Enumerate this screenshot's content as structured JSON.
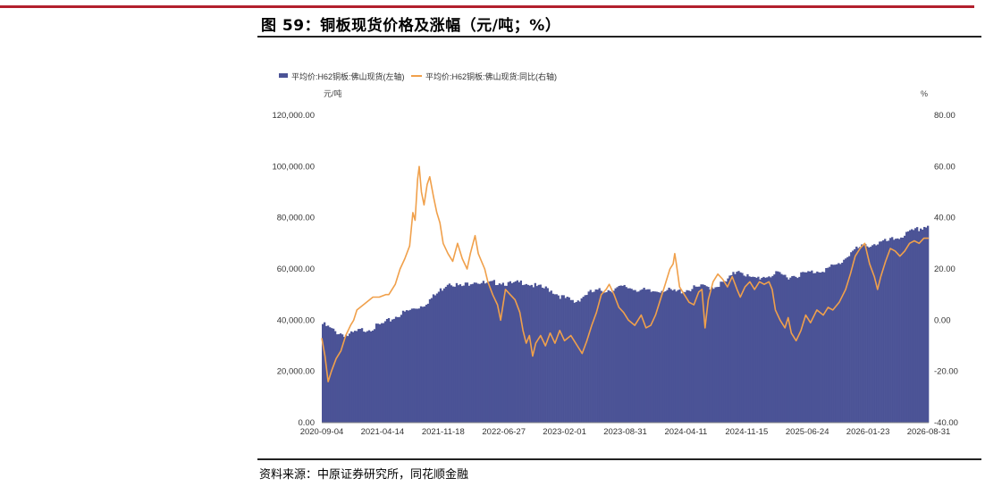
{
  "figure": {
    "title": "图 59：铜板现货价格及涨幅（元/吨；%）",
    "source": "资料来源：中原证券研究所，同花顺金融"
  },
  "colors": {
    "bar": "#4b5396",
    "line": "#f0a04b",
    "accent_rule": "#b21f2d"
  },
  "chart_data": {
    "type": "bar",
    "legend": [
      "平均价:H62铜板:佛山现货(左轴)",
      "平均价:H62铜板:佛山现货:同比(右轴)"
    ],
    "legend_position": "top-left",
    "left_unit": "元/吨",
    "right_unit": "%",
    "left_ticks": [
      "0.00",
      "20,000.00",
      "40,000.00",
      "60,000.00",
      "80,000.00",
      "100,000.00",
      "120,000.00"
    ],
    "right_ticks": [
      "-40.00",
      "-20.00",
      "0.00",
      "20.00",
      "40.00",
      "60.00",
      "80.00"
    ],
    "ylim_left": [
      0,
      120000
    ],
    "ylim_right": [
      -40,
      80
    ],
    "x_tick_labels": [
      "2020-09-04",
      "2021-04-14",
      "2021-11-18",
      "2022-06-27",
      "2023-02-01",
      "2023-08-31",
      "2024-04-11",
      "2024-11-15",
      "2025-06-24",
      "2026-01-23",
      "2026-08-31"
    ],
    "grid": false,
    "series": [
      {
        "name": "平均价:H62铜板:佛山现货(左轴)",
        "type": "bar",
        "axis": "left",
        "points": [
          [
            0,
            38500
          ],
          [
            0.25,
            35500
          ],
          [
            0.5,
            34000
          ],
          [
            0.75,
            36000
          ],
          [
            1,
            37000
          ],
          [
            1.25,
            39000
          ],
          [
            1.5,
            42000
          ],
          [
            1.75,
            44000
          ],
          [
            2,
            46000
          ],
          [
            2.25,
            50000
          ],
          [
            2.5,
            55000
          ],
          [
            2.75,
            53000
          ],
          [
            3,
            55500
          ],
          [
            3.25,
            54000
          ],
          [
            3.5,
            55000
          ],
          [
            3.75,
            54000
          ],
          [
            4,
            55000
          ],
          [
            4.25,
            53000
          ],
          [
            4.5,
            52000
          ],
          [
            4.75,
            49000
          ],
          [
            5,
            47000
          ],
          [
            5.25,
            50500
          ],
          [
            5.5,
            51500
          ],
          [
            5.75,
            52000
          ],
          [
            6,
            53000
          ],
          [
            6.25,
            52000
          ],
          [
            6.5,
            51000
          ],
          [
            6.75,
            52000
          ],
          [
            7,
            51000
          ],
          [
            7.25,
            52000
          ],
          [
            7.5,
            53000
          ],
          [
            7.75,
            53000
          ],
          [
            8,
            55000
          ],
          [
            8.25,
            60000
          ],
          [
            8.5,
            56000
          ],
          [
            8.75,
            57000
          ],
          [
            9,
            58000
          ],
          [
            9.25,
            57000
          ],
          [
            9.5,
            58000
          ],
          [
            9.75,
            59000
          ],
          [
            10,
            60000
          ],
          [
            10.25,
            62000
          ],
          [
            10.5,
            67000
          ],
          [
            10.75,
            69000
          ],
          [
            11,
            70000
          ],
          [
            11.25,
            71000
          ],
          [
            11.5,
            73000
          ],
          [
            11.75,
            75000
          ],
          [
            12,
            77000
          ]
        ]
      },
      {
        "name": "平均价:H62铜板:佛山现货:同比(右轴)",
        "type": "line",
        "axis": "right",
        "points": [
          [
            0,
            -7
          ],
          [
            0.1,
            -14
          ],
          [
            0.2,
            -24
          ],
          [
            0.3,
            -20
          ],
          [
            0.45,
            -15
          ],
          [
            0.6,
            -12
          ],
          [
            0.75,
            -6
          ],
          [
            0.9,
            -2
          ],
          [
            1,
            0
          ],
          [
            1.1,
            4
          ],
          [
            1.3,
            6
          ],
          [
            1.6,
            9
          ],
          [
            1.8,
            9
          ],
          [
            2,
            10
          ],
          [
            2.1,
            10
          ],
          [
            2.3,
            14
          ],
          [
            2.45,
            20
          ],
          [
            2.6,
            24
          ],
          [
            2.75,
            29
          ],
          [
            2.85,
            42
          ],
          [
            2.92,
            39
          ],
          [
            3,
            55
          ],
          [
            3.05,
            60
          ],
          [
            3.12,
            50
          ],
          [
            3.2,
            45
          ],
          [
            3.3,
            53
          ],
          [
            3.38,
            56
          ],
          [
            3.5,
            48
          ],
          [
            3.6,
            42
          ],
          [
            3.7,
            38
          ],
          [
            3.8,
            30
          ],
          [
            3.95,
            26
          ],
          [
            4.1,
            23
          ],
          [
            4.25,
            30
          ],
          [
            4.4,
            24
          ],
          [
            4.55,
            20
          ],
          [
            4.65,
            26
          ],
          [
            4.8,
            33
          ],
          [
            4.9,
            26
          ],
          [
            5,
            23
          ],
          [
            5.1,
            20
          ],
          [
            5.2,
            15
          ],
          [
            5.35,
            10
          ],
          [
            5.5,
            6
          ],
          [
            5.6,
            0
          ],
          [
            5.75,
            12
          ],
          [
            5.9,
            10
          ],
          [
            6.05,
            8
          ],
          [
            6.2,
            3
          ],
          [
            6.3,
            -4
          ],
          [
            6.4,
            -9
          ],
          [
            6.5,
            -6
          ],
          [
            6.6,
            -14
          ],
          [
            6.7,
            -9
          ],
          [
            6.85,
            -6
          ],
          [
            7,
            -10
          ],
          [
            7.15,
            -5
          ],
          [
            7.3,
            -9
          ],
          [
            7.45,
            -4
          ],
          [
            7.6,
            -8
          ],
          [
            7.8,
            -6
          ],
          [
            8,
            -10
          ],
          [
            8.15,
            -13
          ],
          [
            8.3,
            -8
          ],
          [
            8.45,
            -2
          ],
          [
            8.6,
            3
          ],
          [
            8.75,
            10
          ],
          [
            8.9,
            12
          ],
          [
            9,
            14
          ],
          [
            9.15,
            10
          ],
          [
            9.3,
            5
          ],
          [
            9.45,
            3
          ],
          [
            9.6,
            0
          ],
          [
            9.8,
            -2
          ],
          [
            10,
            2
          ],
          [
            10.15,
            -3
          ],
          [
            10.3,
            -2
          ],
          [
            10.45,
            2
          ],
          [
            10.6,
            8
          ],
          [
            10.75,
            14
          ],
          [
            10.9,
            20
          ],
          [
            11,
            22
          ],
          [
            11.05,
            26
          ],
          [
            11.1,
            22
          ],
          [
            11.2,
            13
          ],
          [
            11.35,
            10
          ],
          [
            11.5,
            7
          ],
          [
            11.65,
            6
          ],
          [
            11.8,
            11
          ],
          [
            11.9,
            12
          ],
          [
            12,
            -3
          ],
          [
            12.1,
            8
          ],
          [
            12.25,
            15
          ],
          [
            12.4,
            18
          ],
          [
            12.55,
            16
          ],
          [
            12.7,
            13
          ],
          [
            12.85,
            17
          ],
          [
            13,
            12
          ],
          [
            13.1,
            9
          ],
          [
            13.25,
            13
          ],
          [
            13.4,
            15
          ],
          [
            13.55,
            12
          ],
          [
            13.7,
            15
          ],
          [
            13.85,
            14
          ],
          [
            14,
            15
          ],
          [
            14.1,
            12
          ],
          [
            14.2,
            4
          ],
          [
            14.35,
            0
          ],
          [
            14.5,
            -3
          ],
          [
            14.6,
            1
          ],
          [
            14.7,
            -5
          ],
          [
            14.85,
            -8
          ],
          [
            15,
            -4
          ],
          [
            15.15,
            2
          ],
          [
            15.3,
            -1
          ],
          [
            15.5,
            4
          ],
          [
            15.7,
            2
          ],
          [
            15.85,
            5
          ],
          [
            16,
            4
          ],
          [
            16.2,
            7
          ],
          [
            16.4,
            12
          ],
          [
            16.55,
            18
          ],
          [
            16.7,
            25
          ],
          [
            16.85,
            28
          ],
          [
            17,
            30
          ],
          [
            17.15,
            22
          ],
          [
            17.3,
            17
          ],
          [
            17.4,
            12
          ],
          [
            17.5,
            17
          ],
          [
            17.65,
            23
          ],
          [
            17.8,
            28
          ],
          [
            17.95,
            27
          ],
          [
            18.1,
            25
          ],
          [
            18.25,
            27
          ],
          [
            18.4,
            30
          ],
          [
            18.55,
            31
          ],
          [
            18.7,
            30
          ],
          [
            18.85,
            32
          ],
          [
            19,
            32
          ]
        ]
      }
    ]
  }
}
